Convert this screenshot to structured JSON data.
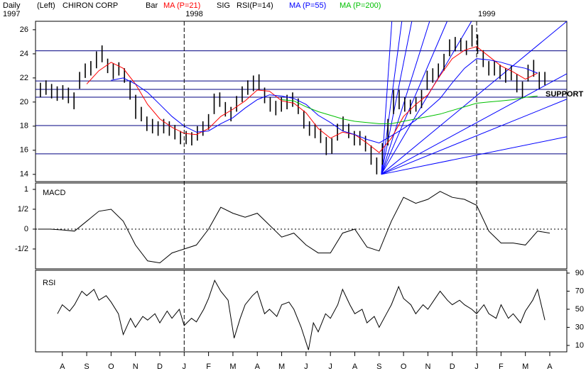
{
  "header": {
    "period": "Daily",
    "side": "(Left)",
    "style": "Bar",
    "signal": "SIG",
    "rsi": "RSI(P=14)",
    "start_year": "1997"
  },
  "chart_data": [
    {
      "type": "ohlc",
      "title": "CHIRON CORP",
      "xlim": [
        -0.1,
        21.7
      ],
      "ylim": [
        13.4,
        26.7
      ],
      "yticks": [
        14,
        16,
        18,
        20,
        22,
        24,
        26
      ],
      "y_axis_side": "left",
      "year_lines": [
        {
          "value": 6,
          "label": "1998"
        },
        {
          "value": 18,
          "label": "1999"
        }
      ],
      "color": "#000000",
      "x": [
        0.1,
        0.33,
        0.56,
        0.79,
        1.02,
        1.25,
        1.48,
        1.71,
        1.94,
        2.17,
        2.4,
        2.63,
        2.86,
        3.09,
        3.32,
        3.55,
        3.78,
        4.01,
        4.24,
        4.47,
        4.7,
        4.93,
        5.16,
        5.39,
        5.62,
        5.85,
        6.08,
        6.31,
        6.54,
        6.77,
        7.0,
        7.23,
        7.46,
        7.69,
        7.92,
        8.15,
        8.38,
        8.61,
        8.84,
        9.07,
        9.3,
        9.53,
        9.76,
        9.99,
        10.22,
        10.45,
        10.68,
        10.91,
        11.14,
        11.37,
        11.6,
        11.83,
        12.06,
        12.29,
        12.52,
        12.75,
        12.98,
        13.21,
        13.44,
        13.67,
        13.9,
        14.13,
        14.36,
        14.59,
        14.82,
        15.05,
        15.28,
        15.51,
        15.74,
        15.97,
        16.2,
        16.43,
        16.66,
        16.89,
        17.12,
        17.35,
        17.58,
        17.81,
        18.04,
        18.27,
        18.5,
        18.73,
        18.96,
        19.19,
        19.42,
        19.65,
        19.88,
        20.11,
        20.34,
        20.57,
        20.8
      ],
      "high": [
        21.6,
        21.8,
        21.5,
        21.3,
        21.4,
        21.2,
        20.8,
        22.5,
        23.2,
        23.4,
        24.2,
        24.7,
        23.6,
        23.2,
        23.3,
        22.8,
        21.8,
        20.6,
        19.6,
        18.8,
        18.6,
        18.4,
        18.6,
        18.4,
        18.1,
        17.6,
        17.6,
        17.5,
        18.0,
        18.4,
        19.0,
        20.7,
        20.8,
        20.0,
        19.6,
        20.5,
        21.3,
        21.8,
        22.2,
        22.3,
        21.2,
        20.4,
        20.1,
        20.4,
        20.6,
        20.8,
        20.3,
        19.3,
        18.4,
        18.2,
        17.8,
        17.1,
        17.0,
        18.2,
        18.8,
        18.2,
        17.6,
        17.6,
        17.2,
        16.4,
        15.4,
        16.6,
        18.6,
        21.0,
        21.0,
        20.4,
        20.2,
        20.4,
        21.0,
        22.6,
        22.8,
        23.2,
        24.0,
        25.2,
        25.4,
        25.3,
        25.1,
        26.4,
        25.6,
        24.3,
        23.4,
        23.4,
        23.1,
        22.8,
        23.0,
        22.3,
        21.7,
        23.1,
        23.5,
        22.5,
        22.5
      ],
      "low": [
        20.4,
        20.6,
        20.3,
        20.1,
        20.2,
        19.9,
        19.4,
        21.1,
        22.0,
        22.2,
        22.8,
        23.3,
        22.4,
        21.9,
        22.2,
        21.6,
        20.2,
        18.6,
        18.4,
        17.6,
        17.4,
        17.2,
        17.4,
        17.2,
        16.9,
        16.5,
        16.5,
        16.4,
        16.8,
        17.2,
        17.7,
        19.0,
        19.6,
        18.8,
        18.4,
        19.2,
        20.0,
        20.6,
        20.9,
        21.0,
        19.9,
        19.2,
        18.9,
        19.2,
        19.4,
        19.6,
        19.0,
        17.8,
        17.2,
        17.0,
        16.6,
        15.6,
        15.7,
        16.8,
        17.6,
        17.0,
        16.4,
        16.4,
        15.9,
        14.8,
        14.0,
        14.8,
        16.4,
        19.0,
        19.4,
        19.2,
        19.0,
        19.2,
        19.5,
        21.0,
        21.6,
        22.0,
        22.6,
        23.8,
        24.2,
        24.2,
        23.9,
        24.6,
        24.0,
        22.9,
        22.2,
        22.2,
        21.9,
        21.6,
        21.8,
        20.8,
        20.3,
        21.7,
        22.1,
        21.1,
        21.4
      ],
      "series": [
        {
          "name": "MA (P=21)",
          "color": "#ff0000",
          "x": [
            0.5,
            1,
            1.5,
            2,
            2.5,
            3,
            3.5,
            4,
            4.5,
            5,
            5.5,
            6,
            6.5,
            7,
            7.5,
            8,
            8.5,
            9,
            9.5,
            10,
            10.5,
            11,
            11.5,
            12,
            12.5,
            13,
            13.5,
            14,
            14.5,
            15,
            15.5,
            16,
            16.5,
            17,
            17.5,
            18,
            18.5,
            19,
            19.5,
            20,
            20.5
          ],
          "values": [
            null,
            null,
            null,
            21.5,
            22.6,
            23.3,
            22.8,
            21.5,
            19.8,
            18.6,
            17.9,
            17.4,
            17.3,
            17.8,
            18.8,
            19.4,
            20.1,
            21.0,
            20.9,
            20.1,
            19.9,
            19.1,
            17.8,
            17.0,
            17.5,
            17.3,
            16.6,
            15.8,
            17.0,
            18.8,
            19.8,
            20.6,
            22.2,
            23.6,
            24.3,
            24.6,
            23.8,
            23.0,
            22.5,
            21.9,
            22.4
          ]
        },
        {
          "name": "MA (P=55)",
          "color": "#0000ff",
          "x": [
            0.5,
            1,
            1.5,
            2,
            2.5,
            3,
            3.5,
            4,
            4.5,
            5,
            5.5,
            6,
            6.5,
            7,
            7.5,
            8,
            8.5,
            9,
            9.5,
            10,
            10.5,
            11,
            11.5,
            12,
            12.5,
            13,
            13.5,
            14,
            14.5,
            15,
            15.5,
            16,
            16.5,
            17,
            17.5,
            18,
            18.5,
            19,
            19.5,
            20,
            20.5
          ],
          "values": [
            null,
            null,
            null,
            null,
            null,
            21.8,
            22.0,
            21.5,
            20.8,
            19.8,
            18.8,
            18.0,
            17.5,
            17.6,
            18.2,
            18.7,
            19.5,
            20.2,
            20.6,
            20.5,
            20.3,
            19.8,
            18.9,
            18.3,
            17.6,
            17.3,
            16.9,
            16.6,
            17.2,
            17.8,
            18.5,
            19.4,
            20.3,
            21.6,
            22.8,
            23.6,
            23.5,
            23.3,
            23.0,
            22.8,
            22.4
          ]
        },
        {
          "name": "MA (P=200)",
          "color": "#00c000",
          "x": [
            0.5,
            1,
            1.5,
            2,
            2.5,
            3,
            3.5,
            4,
            4.5,
            5,
            5.5,
            6,
            6.5,
            7,
            7.5,
            8,
            8.5,
            9,
            9.5,
            10,
            10.5,
            11,
            11.5,
            12,
            12.5,
            13,
            13.5,
            14,
            14.5,
            15,
            15.5,
            16,
            16.5,
            17,
            17.5,
            18,
            18.5,
            19,
            19.5,
            20,
            20.5
          ],
          "values": [
            null,
            null,
            null,
            null,
            null,
            null,
            null,
            null,
            null,
            null,
            null,
            null,
            null,
            null,
            null,
            null,
            null,
            null,
            null,
            20.2,
            20.1,
            19.6,
            19.2,
            18.9,
            18.6,
            18.4,
            18.3,
            18.2,
            18.2,
            18.4,
            18.6,
            18.8,
            19.0,
            19.3,
            19.6,
            19.9,
            20.0,
            20.1,
            20.2,
            20.4,
            20.5
          ]
        }
      ],
      "levels": [
        24.25,
        21.75,
        21.05,
        20.4,
        18.05,
        15.7
      ],
      "fan_lines": [
        {
          "x": [
            14.09,
            14.52
          ],
          "y": [
            14,
            26.7
          ]
        },
        {
          "x": [
            14.09,
            14.93
          ],
          "y": [
            14,
            26.7
          ]
        },
        {
          "x": [
            14.09,
            15.34
          ],
          "y": [
            14,
            26.7
          ]
        },
        {
          "x": [
            14.09,
            16.07
          ],
          "y": [
            14,
            26.7
          ]
        },
        {
          "x": [
            14.09,
            16.79
          ],
          "y": [
            14,
            26.7
          ]
        },
        {
          "x": [
            14.09,
            17.79
          ],
          "y": [
            14,
            26.7
          ]
        },
        {
          "x": [
            14.09,
            21.7
          ],
          "y": [
            14,
            26.7
          ]
        },
        {
          "x": [
            14.09,
            21.7
          ],
          "y": [
            14,
            22.35
          ]
        },
        {
          "x": [
            14.09,
            21.7
          ],
          "y": [
            14,
            20.24
          ]
        },
        {
          "x": [
            14.09,
            21.7
          ],
          "y": [
            14,
            17.12
          ]
        }
      ],
      "annotations": [
        "SUPPORT"
      ]
    },
    {
      "type": "line",
      "title": "MACD",
      "color": "#000000",
      "xlim": [
        -0.1,
        21.7
      ],
      "ylim": [
        -1,
        1.16
      ],
      "y_axis_side": "left",
      "yticks": [
        {
          "value": -0.5,
          "label": "-1/2"
        },
        0,
        {
          "value": 0.5,
          "label": "1/2"
        },
        1
      ],
      "reference_lines": [
        0
      ],
      "x": [
        0,
        0.5,
        1,
        1.5,
        2,
        2.5,
        3,
        3.5,
        4,
        4.5,
        5,
        5.5,
        6,
        6.5,
        7,
        7.5,
        8,
        8.5,
        9,
        9.5,
        10,
        10.5,
        11,
        11.5,
        12,
        12.5,
        13,
        13.5,
        14,
        14.5,
        15,
        15.5,
        16,
        16.5,
        17,
        17.5,
        18,
        18.5,
        19,
        19.5,
        20,
        20.5,
        21
      ],
      "values": [
        0.0,
        0.0,
        -0.02,
        -0.05,
        0.2,
        0.45,
        0.5,
        0.2,
        -0.4,
        -0.8,
        -0.85,
        -0.6,
        -0.5,
        -0.4,
        0.0,
        0.55,
        0.4,
        0.3,
        0.4,
        0.1,
        -0.2,
        -0.1,
        -0.4,
        -0.6,
        -0.6,
        -0.1,
        0.0,
        -0.45,
        -0.55,
        0.2,
        0.8,
        0.65,
        0.75,
        0.95,
        0.8,
        0.75,
        0.6,
        -0.05,
        -0.35,
        -0.35,
        -0.4,
        -0.05,
        -0.1
      ]
    },
    {
      "type": "line",
      "title": "RSI",
      "color": "#000000",
      "xlim": [
        -0.1,
        21.7
      ],
      "ylim": [
        2.9,
        93.1
      ],
      "y_axis_side": "right",
      "yticks": [
        10,
        30,
        50,
        70,
        90
      ],
      "xticks": [
        {
          "value": 1,
          "label": "A"
        },
        {
          "value": 2,
          "label": "S"
        },
        {
          "value": 3,
          "label": "O"
        },
        {
          "value": 4,
          "label": "N"
        },
        {
          "value": 5,
          "label": "D"
        },
        {
          "value": 6,
          "label": "J"
        },
        {
          "value": 7,
          "label": "F"
        },
        {
          "value": 8,
          "label": "M"
        },
        {
          "value": 9,
          "label": "A"
        },
        {
          "value": 10,
          "label": "M"
        },
        {
          "value": 11,
          "label": "J"
        },
        {
          "value": 12,
          "label": "J"
        },
        {
          "value": 13,
          "label": "A"
        },
        {
          "value": 14,
          "label": "S"
        },
        {
          "value": 15,
          "label": "O"
        },
        {
          "value": 16,
          "label": "N"
        },
        {
          "value": 17,
          "label": "D"
        },
        {
          "value": 18,
          "label": "J"
        },
        {
          "value": 19,
          "label": "F"
        },
        {
          "value": 20,
          "label": "M"
        },
        {
          "value": 21,
          "label": "A"
        }
      ],
      "x": [
        0.8,
        1.0,
        1.3,
        1.5,
        1.8,
        2.0,
        2.3,
        2.5,
        2.8,
        3.0,
        3.3,
        3.5,
        3.8,
        4.0,
        4.3,
        4.5,
        4.8,
        5.0,
        5.3,
        5.5,
        5.8,
        6.0,
        6.3,
        6.5,
        6.8,
        7.0,
        7.25,
        7.5,
        7.8,
        8.05,
        8.3,
        8.5,
        8.8,
        9.0,
        9.3,
        9.5,
        9.8,
        10.0,
        10.3,
        10.5,
        10.8,
        11.1,
        11.3,
        11.5,
        11.8,
        12.0,
        12.3,
        12.5,
        12.8,
        13.0,
        13.3,
        13.5,
        13.8,
        14.0,
        14.3,
        14.5,
        14.8,
        15.0,
        15.3,
        15.5,
        15.8,
        16.0,
        16.3,
        16.5,
        16.8,
        17.0,
        17.3,
        17.5,
        17.8,
        18.0,
        18.3,
        18.5,
        18.8,
        19.0,
        19.3,
        19.5,
        19.8,
        20.0,
        20.3,
        20.5,
        20.8
      ],
      "values": [
        45,
        55,
        48,
        55,
        70,
        65,
        72,
        60,
        65,
        58,
        45,
        22,
        40,
        30,
        42,
        38,
        45,
        35,
        48,
        40,
        50,
        32,
        40,
        36,
        50,
        62,
        82,
        70,
        60,
        18,
        40,
        55,
        65,
        70,
        45,
        50,
        42,
        55,
        58,
        50,
        30,
        5,
        35,
        25,
        45,
        40,
        55,
        72,
        55,
        45,
        50,
        35,
        42,
        30,
        45,
        55,
        75,
        62,
        55,
        45,
        55,
        50,
        62,
        70,
        60,
        55,
        60,
        55,
        50,
        45,
        55,
        45,
        40,
        55,
        40,
        45,
        35,
        48,
        60,
        72,
        38
      ]
    }
  ]
}
